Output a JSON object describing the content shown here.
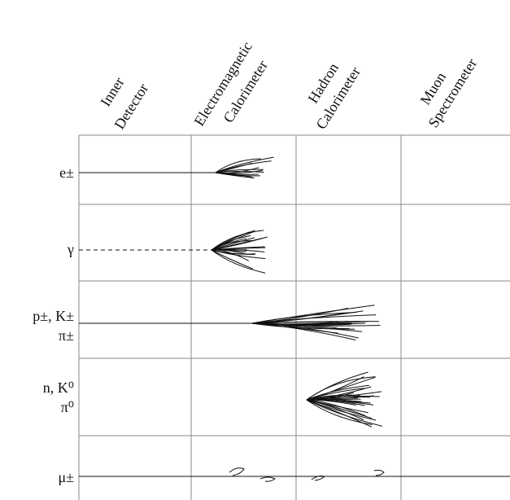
{
  "columns": [
    {
      "lines": [
        "Inner",
        "Detector"
      ]
    },
    {
      "lines": [
        "Electromagnetic",
        "Calorimeter"
      ]
    },
    {
      "lines": [
        "Hadron",
        "Calorimeter"
      ]
    },
    {
      "lines": [
        "Muon",
        "Spectrometer"
      ]
    }
  ],
  "rows": [
    {
      "lines": [
        "e±"
      ]
    },
    {
      "lines": [
        "γ"
      ]
    },
    {
      "lines": [
        "p±, K±",
        "π±"
      ]
    },
    {
      "lines": [
        "n, K⁰",
        "π⁰"
      ]
    },
    {
      "lines": [
        "μ±"
      ]
    }
  ]
}
